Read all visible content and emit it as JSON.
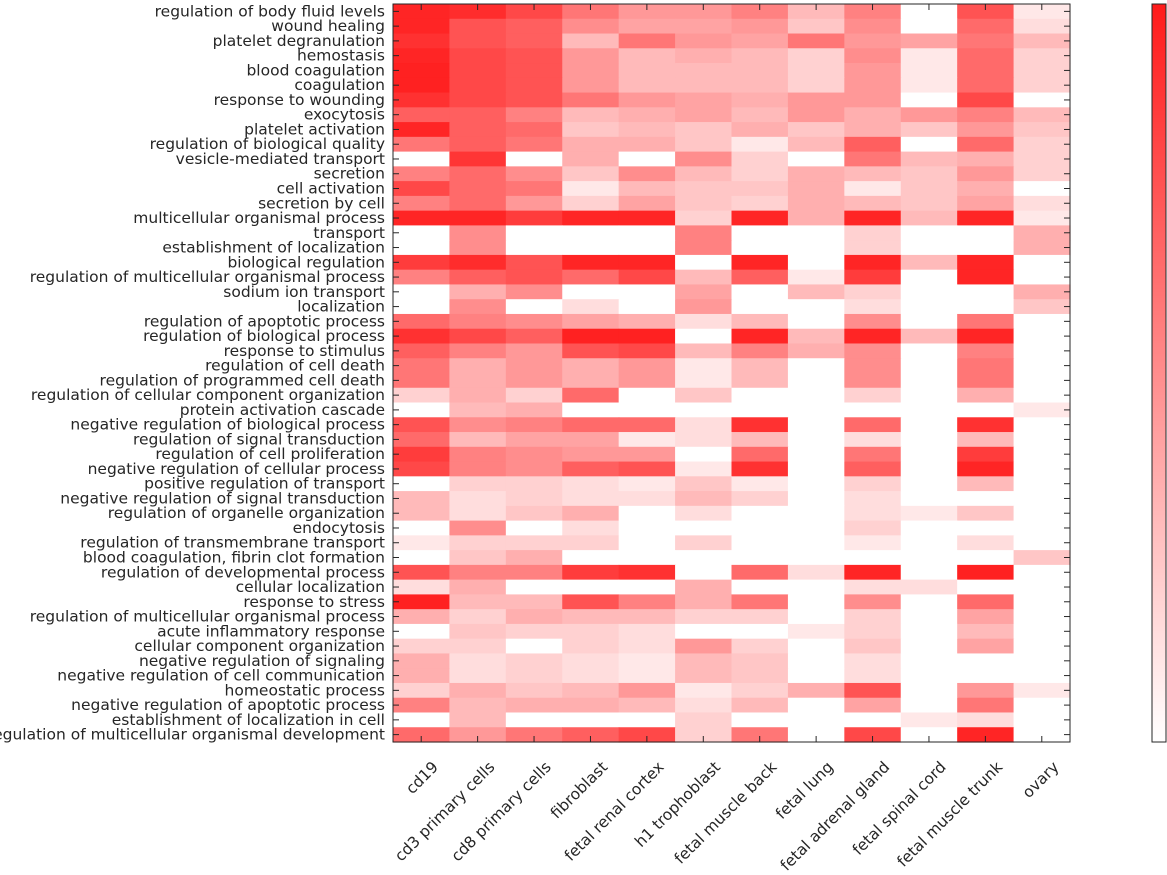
{
  "chart_data": {
    "type": "heatmap",
    "title": "",
    "xlabel": "",
    "ylabel": "",
    "colormap": {
      "low": "#ffffff",
      "high": "#ff1a1a"
    },
    "value_range": [
      0,
      1
    ],
    "columns": [
      "cd19",
      "cd3 primary cells",
      "cd8 primary cells",
      "fibroblast",
      "fetal renal cortex",
      "h1 trophoblast",
      "fetal muscle back",
      "fetal lung",
      "fetal adrenal gland",
      "fetal spinal cord",
      "fetal muscle trunk",
      "ovary"
    ],
    "rows": [
      "regulation of body fluid levels",
      "wound healing",
      "platelet degranulation",
      "hemostasis",
      "blood coagulation",
      "coagulation",
      "response to wounding",
      "exocytosis",
      "platelet activation",
      "regulation of biological quality",
      "vesicle-mediated transport",
      "secretion",
      "cell activation",
      "secretion by cell",
      "multicellular organismal process",
      "transport",
      "establishment of localization",
      "biological regulation",
      "regulation of multicellular organismal process",
      "sodium ion transport",
      "localization",
      "regulation of apoptotic process",
      "regulation of biological process",
      "response to stimulus",
      "regulation of cell death",
      "regulation of programmed cell death",
      "regulation of cellular component organization",
      "protein activation cascade",
      "negative regulation of biological process",
      "regulation of signal transduction",
      "regulation of cell proliferation",
      "negative regulation of cellular process",
      "positive regulation of transport",
      "negative regulation of signal transduction",
      "regulation of organelle organization",
      "endocytosis",
      "regulation of transmembrane transport",
      "blood coagulation, fibrin clot formation",
      "regulation of developmental process",
      "cellular localization",
      "response to stress",
      "regulation of multicellular organismal process",
      "acute inflammatory response",
      "cellular component organization",
      "negative regulation of signaling",
      "negative regulation of cell communication",
      "homeostatic process",
      "negative regulation of apoptotic process",
      "establishment of localization in cell",
      "regulation of multicellular organismal development"
    ],
    "values": [
      [
        0.95,
        0.92,
        0.8,
        0.6,
        0.45,
        0.45,
        0.55,
        0.3,
        0.55,
        0.0,
        0.75,
        0.1
      ],
      [
        0.95,
        0.75,
        0.7,
        0.5,
        0.4,
        0.4,
        0.45,
        0.25,
        0.5,
        0.0,
        0.65,
        0.15
      ],
      [
        0.9,
        0.75,
        0.7,
        0.3,
        0.6,
        0.45,
        0.4,
        0.6,
        0.45,
        0.4,
        0.6,
        0.3
      ],
      [
        0.95,
        0.8,
        0.75,
        0.45,
        0.3,
        0.35,
        0.3,
        0.2,
        0.5,
        0.1,
        0.65,
        0.2
      ],
      [
        0.97,
        0.8,
        0.75,
        0.45,
        0.3,
        0.3,
        0.3,
        0.2,
        0.45,
        0.1,
        0.65,
        0.2
      ],
      [
        0.97,
        0.8,
        0.75,
        0.45,
        0.3,
        0.3,
        0.3,
        0.2,
        0.45,
        0.1,
        0.65,
        0.2
      ],
      [
        0.9,
        0.8,
        0.75,
        0.6,
        0.45,
        0.4,
        0.35,
        0.45,
        0.45,
        0.0,
        0.8,
        0.0
      ],
      [
        0.7,
        0.7,
        0.55,
        0.3,
        0.35,
        0.4,
        0.3,
        0.45,
        0.35,
        0.45,
        0.55,
        0.3
      ],
      [
        0.95,
        0.7,
        0.65,
        0.25,
        0.3,
        0.25,
        0.35,
        0.25,
        0.35,
        0.25,
        0.45,
        0.25
      ],
      [
        0.6,
        0.7,
        0.6,
        0.35,
        0.35,
        0.25,
        0.1,
        0.3,
        0.7,
        0.0,
        0.65,
        0.2
      ],
      [
        0.0,
        0.88,
        0.0,
        0.35,
        0.0,
        0.5,
        0.2,
        0.0,
        0.6,
        0.3,
        0.35,
        0.2
      ],
      [
        0.55,
        0.65,
        0.5,
        0.25,
        0.5,
        0.3,
        0.2,
        0.35,
        0.3,
        0.25,
        0.45,
        0.2
      ],
      [
        0.8,
        0.65,
        0.6,
        0.1,
        0.3,
        0.25,
        0.25,
        0.35,
        0.1,
        0.25,
        0.35,
        0.0
      ],
      [
        0.55,
        0.65,
        0.45,
        0.2,
        0.4,
        0.25,
        0.2,
        0.35,
        0.3,
        0.25,
        0.4,
        0.15
      ],
      [
        0.95,
        0.95,
        0.85,
        0.95,
        0.95,
        0.2,
        0.95,
        0.35,
        0.95,
        0.3,
        0.95,
        0.1
      ],
      [
        0.0,
        0.5,
        0.0,
        0.0,
        0.0,
        0.55,
        0.0,
        0.0,
        0.2,
        0.0,
        0.0,
        0.35
      ],
      [
        0.0,
        0.5,
        0.0,
        0.0,
        0.0,
        0.55,
        0.0,
        0.0,
        0.2,
        0.0,
        0.0,
        0.35
      ],
      [
        0.85,
        0.92,
        0.75,
        0.95,
        0.95,
        0.0,
        0.95,
        0.0,
        0.95,
        0.3,
        0.95,
        0.0
      ],
      [
        0.55,
        0.7,
        0.75,
        0.65,
        0.8,
        0.3,
        0.7,
        0.1,
        0.85,
        0.0,
        0.95,
        0.0
      ],
      [
        0.0,
        0.35,
        0.5,
        0.0,
        0.0,
        0.4,
        0.0,
        0.3,
        0.2,
        0.0,
        0.0,
        0.35
      ],
      [
        0.0,
        0.5,
        0.0,
        0.15,
        0.0,
        0.45,
        0.0,
        0.0,
        0.15,
        0.0,
        0.0,
        0.25
      ],
      [
        0.65,
        0.55,
        0.5,
        0.4,
        0.35,
        0.15,
        0.3,
        0.0,
        0.5,
        0.0,
        0.6,
        0.0
      ],
      [
        0.9,
        0.8,
        0.7,
        0.97,
        0.97,
        0.0,
        0.95,
        0.3,
        0.95,
        0.3,
        0.95,
        0.0
      ],
      [
        0.7,
        0.55,
        0.45,
        0.75,
        0.8,
        0.3,
        0.55,
        0.35,
        0.5,
        0.0,
        0.55,
        0.0
      ],
      [
        0.6,
        0.35,
        0.45,
        0.35,
        0.45,
        0.1,
        0.3,
        0.0,
        0.5,
        0.0,
        0.6,
        0.0
      ],
      [
        0.6,
        0.35,
        0.45,
        0.35,
        0.45,
        0.1,
        0.3,
        0.0,
        0.5,
        0.0,
        0.6,
        0.0
      ],
      [
        0.2,
        0.35,
        0.2,
        0.65,
        0.0,
        0.25,
        0.0,
        0.0,
        0.2,
        0.0,
        0.35,
        0.0
      ],
      [
        0.0,
        0.3,
        0.35,
        0.0,
        0.0,
        0.0,
        0.0,
        0.0,
        0.0,
        0.0,
        0.0,
        0.1
      ],
      [
        0.75,
        0.5,
        0.55,
        0.65,
        0.65,
        0.15,
        0.9,
        0.0,
        0.65,
        0.0,
        0.9,
        0.0
      ],
      [
        0.65,
        0.3,
        0.4,
        0.4,
        0.1,
        0.15,
        0.3,
        0.0,
        0.15,
        0.0,
        0.3,
        0.0
      ],
      [
        0.85,
        0.55,
        0.5,
        0.45,
        0.45,
        0.0,
        0.65,
        0.0,
        0.6,
        0.0,
        0.85,
        0.0
      ],
      [
        0.8,
        0.55,
        0.5,
        0.7,
        0.75,
        0.1,
        0.9,
        0.0,
        0.7,
        0.0,
        0.95,
        0.0
      ],
      [
        0.0,
        0.2,
        0.2,
        0.15,
        0.1,
        0.25,
        0.1,
        0.0,
        0.2,
        0.0,
        0.3,
        0.0
      ],
      [
        0.3,
        0.15,
        0.2,
        0.15,
        0.15,
        0.3,
        0.2,
        0.0,
        0.15,
        0.0,
        0.0,
        0.0
      ],
      [
        0.3,
        0.15,
        0.25,
        0.35,
        0.0,
        0.15,
        0.0,
        0.0,
        0.15,
        0.1,
        0.25,
        0.0
      ],
      [
        0.0,
        0.5,
        0.0,
        0.15,
        0.0,
        0.0,
        0.0,
        0.0,
        0.2,
        0.0,
        0.0,
        0.0
      ],
      [
        0.1,
        0.2,
        0.2,
        0.2,
        0.0,
        0.2,
        0.0,
        0.0,
        0.1,
        0.0,
        0.15,
        0.0
      ],
      [
        0.0,
        0.25,
        0.35,
        0.0,
        0.0,
        0.0,
        0.0,
        0.0,
        0.0,
        0.0,
        0.0,
        0.25
      ],
      [
        0.75,
        0.55,
        0.55,
        0.85,
        0.9,
        0.0,
        0.65,
        0.15,
        0.95,
        0.0,
        0.97,
        0.0
      ],
      [
        0.15,
        0.35,
        0.0,
        0.0,
        0.0,
        0.35,
        0.0,
        0.0,
        0.15,
        0.15,
        0.0,
        0.0
      ],
      [
        0.97,
        0.3,
        0.3,
        0.75,
        0.55,
        0.35,
        0.6,
        0.0,
        0.5,
        0.0,
        0.65,
        0.0
      ],
      [
        0.35,
        0.2,
        0.35,
        0.3,
        0.3,
        0.2,
        0.2,
        0.0,
        0.2,
        0.0,
        0.4,
        0.0
      ],
      [
        0.0,
        0.25,
        0.2,
        0.2,
        0.15,
        0.0,
        0.0,
        0.1,
        0.2,
        0.0,
        0.3,
        0.0
      ],
      [
        0.2,
        0.2,
        0.0,
        0.2,
        0.15,
        0.45,
        0.2,
        0.0,
        0.25,
        0.0,
        0.4,
        0.0
      ],
      [
        0.35,
        0.15,
        0.2,
        0.15,
        0.1,
        0.3,
        0.25,
        0.0,
        0.15,
        0.0,
        0.0,
        0.0
      ],
      [
        0.35,
        0.15,
        0.2,
        0.15,
        0.1,
        0.3,
        0.25,
        0.0,
        0.15,
        0.0,
        0.0,
        0.0
      ],
      [
        0.2,
        0.35,
        0.25,
        0.3,
        0.45,
        0.1,
        0.2,
        0.35,
        0.75,
        0.0,
        0.45,
        0.1
      ],
      [
        0.55,
        0.3,
        0.35,
        0.35,
        0.3,
        0.15,
        0.3,
        0.0,
        0.4,
        0.0,
        0.6,
        0.0
      ],
      [
        0.0,
        0.3,
        0.0,
        0.0,
        0.0,
        0.2,
        0.0,
        0.0,
        0.0,
        0.1,
        0.15,
        0.0
      ],
      [
        0.65,
        0.45,
        0.6,
        0.7,
        0.8,
        0.2,
        0.6,
        0.0,
        0.8,
        0.0,
        0.95,
        0.0
      ]
    ]
  }
}
